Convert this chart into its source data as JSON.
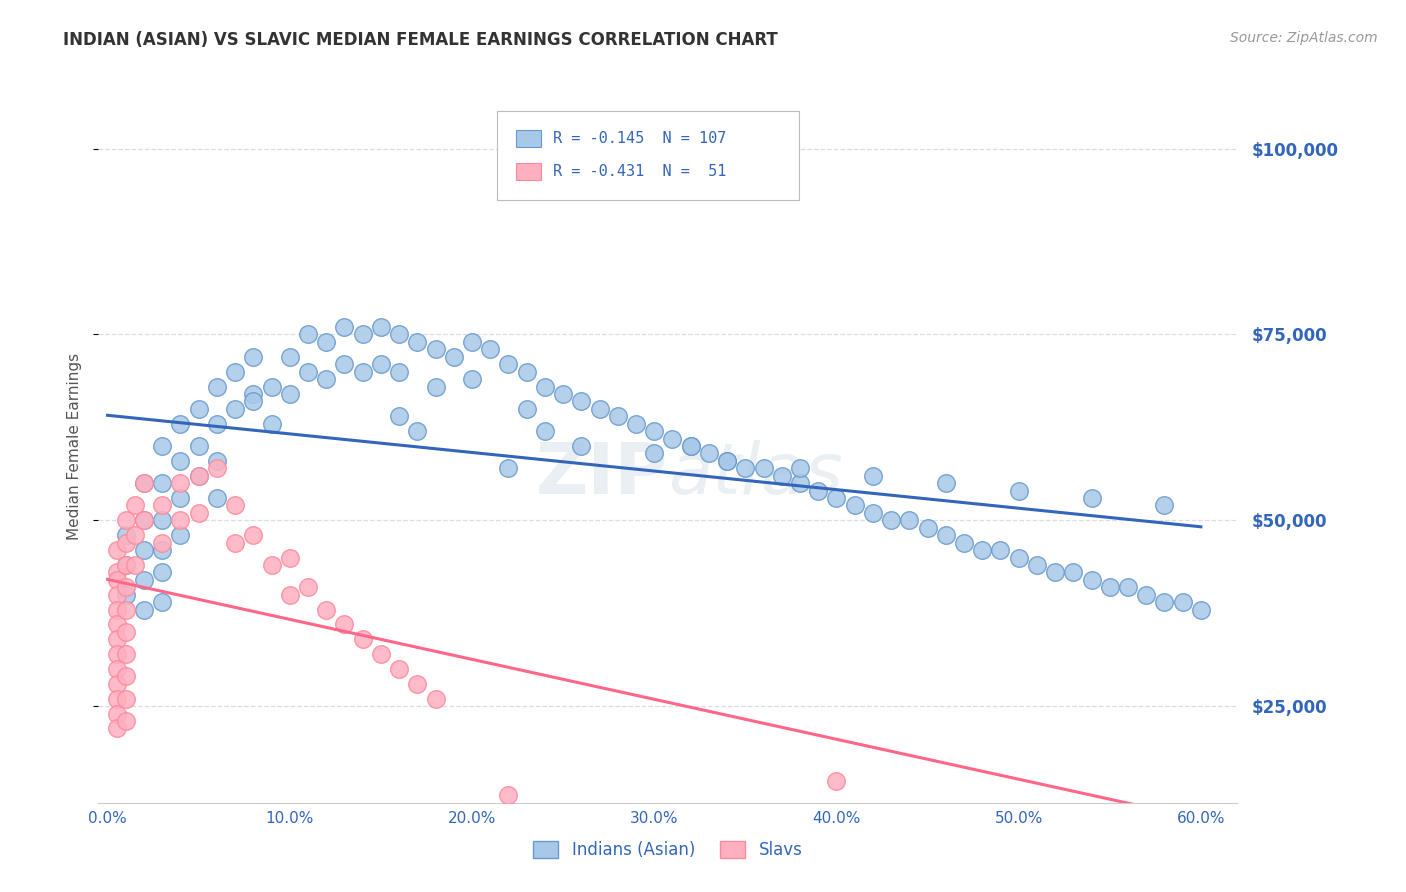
{
  "title": "INDIAN (ASIAN) VS SLAVIC MEDIAN FEMALE EARNINGS CORRELATION CHART",
  "source_text": "Source: ZipAtlas.com",
  "ylabel": "Median Female Earnings",
  "watermark": "ZIPAtlas",
  "xlim": [
    -0.005,
    0.62
  ],
  "ylim": [
    12000,
    108000
  ],
  "yticks": [
    25000,
    50000,
    75000,
    100000
  ],
  "ytick_labels": [
    "$25,000",
    "$50,000",
    "$75,000",
    "$100,000"
  ],
  "xticks": [
    0.0,
    0.1,
    0.2,
    0.3,
    0.4,
    0.5,
    0.6
  ],
  "xtick_labels": [
    "0.0%",
    "10.0%",
    "20.0%",
    "30.0%",
    "40.0%",
    "50.0%",
    "60.0%"
  ],
  "legend_label1": "Indians (Asian)",
  "legend_label2": "Slavs",
  "color_blue": "#A8C8E8",
  "color_blue_edge": "#6699CC",
  "color_blue_line": "#3366BB",
  "color_pink": "#FFB0C0",
  "color_pink_edge": "#FF8899",
  "color_pink_line": "#FF6688",
  "color_text_blue": "#3366BB",
  "color_title": "#333333",
  "color_source": "#999999",
  "background_color": "#FFFFFF",
  "grid_color": "#DDDDDD",
  "blue_x": [
    0.01,
    0.01,
    0.01,
    0.02,
    0.02,
    0.02,
    0.02,
    0.02,
    0.03,
    0.03,
    0.03,
    0.03,
    0.03,
    0.03,
    0.04,
    0.04,
    0.04,
    0.04,
    0.05,
    0.05,
    0.05,
    0.06,
    0.06,
    0.06,
    0.06,
    0.07,
    0.07,
    0.08,
    0.08,
    0.09,
    0.09,
    0.1,
    0.1,
    0.11,
    0.11,
    0.12,
    0.12,
    0.13,
    0.13,
    0.14,
    0.14,
    0.15,
    0.15,
    0.16,
    0.16,
    0.17,
    0.18,
    0.18,
    0.19,
    0.2,
    0.2,
    0.21,
    0.22,
    0.23,
    0.23,
    0.24,
    0.25,
    0.26,
    0.27,
    0.28,
    0.29,
    0.3,
    0.31,
    0.32,
    0.33,
    0.34,
    0.35,
    0.36,
    0.37,
    0.38,
    0.39,
    0.4,
    0.41,
    0.42,
    0.43,
    0.44,
    0.45,
    0.46,
    0.47,
    0.48,
    0.49,
    0.5,
    0.51,
    0.52,
    0.53,
    0.54,
    0.55,
    0.56,
    0.57,
    0.58,
    0.59,
    0.6,
    0.22,
    0.3,
    0.38,
    0.46,
    0.54,
    0.17,
    0.26,
    0.34,
    0.42,
    0.5,
    0.58,
    0.08,
    0.16,
    0.24,
    0.32
  ],
  "blue_y": [
    48000,
    44000,
    40000,
    55000,
    50000,
    46000,
    42000,
    38000,
    60000,
    55000,
    50000,
    46000,
    43000,
    39000,
    63000,
    58000,
    53000,
    48000,
    65000,
    60000,
    56000,
    68000,
    63000,
    58000,
    53000,
    70000,
    65000,
    72000,
    67000,
    68000,
    63000,
    72000,
    67000,
    75000,
    70000,
    74000,
    69000,
    76000,
    71000,
    75000,
    70000,
    76000,
    71000,
    75000,
    70000,
    74000,
    73000,
    68000,
    72000,
    74000,
    69000,
    73000,
    71000,
    70000,
    65000,
    68000,
    67000,
    66000,
    65000,
    64000,
    63000,
    62000,
    61000,
    60000,
    59000,
    58000,
    57000,
    57000,
    56000,
    55000,
    54000,
    53000,
    52000,
    51000,
    50000,
    50000,
    49000,
    48000,
    47000,
    46000,
    46000,
    45000,
    44000,
    43000,
    43000,
    42000,
    41000,
    41000,
    40000,
    39000,
    39000,
    38000,
    57000,
    59000,
    57000,
    55000,
    53000,
    62000,
    60000,
    58000,
    56000,
    54000,
    52000,
    66000,
    64000,
    62000,
    60000
  ],
  "pink_x": [
    0.005,
    0.005,
    0.005,
    0.005,
    0.005,
    0.005,
    0.005,
    0.005,
    0.005,
    0.005,
    0.005,
    0.005,
    0.005,
    0.01,
    0.01,
    0.01,
    0.01,
    0.01,
    0.01,
    0.01,
    0.01,
    0.01,
    0.01,
    0.015,
    0.015,
    0.015,
    0.02,
    0.02,
    0.03,
    0.03,
    0.04,
    0.04,
    0.05,
    0.05,
    0.06,
    0.07,
    0.07,
    0.08,
    0.09,
    0.1,
    0.1,
    0.11,
    0.12,
    0.13,
    0.14,
    0.15,
    0.16,
    0.17,
    0.18,
    0.22,
    0.4
  ],
  "pink_y": [
    46000,
    43000,
    42000,
    40000,
    38000,
    36000,
    34000,
    32000,
    30000,
    28000,
    26000,
    24000,
    22000,
    50000,
    47000,
    44000,
    41000,
    38000,
    35000,
    32000,
    29000,
    26000,
    23000,
    52000,
    48000,
    44000,
    55000,
    50000,
    52000,
    47000,
    55000,
    50000,
    56000,
    51000,
    57000,
    52000,
    47000,
    48000,
    44000,
    45000,
    40000,
    41000,
    38000,
    36000,
    34000,
    32000,
    30000,
    28000,
    26000,
    13000,
    15000
  ]
}
